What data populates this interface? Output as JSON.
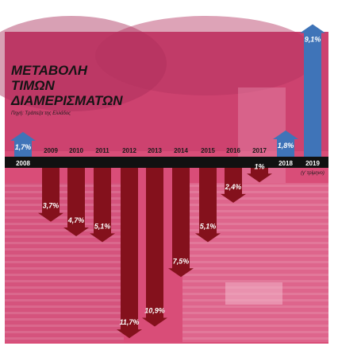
{
  "chart_data": {
    "type": "bar",
    "title_lines": [
      "ΜΕΤΑΒΟΛΗ",
      "ΤΙΜΩΝ",
      "ΔΙΑΜΕΡΙΣΜΑΤΩΝ"
    ],
    "source": "Πηγή: Τράπεζα της Ελλάδος",
    "categories": [
      "2008",
      "2009",
      "2010",
      "2011",
      "2012",
      "2013",
      "2014",
      "2015",
      "2016",
      "2017",
      "2018",
      "2019"
    ],
    "category_note_2019": "(γ' τρίμηνο)",
    "values": [
      1.7,
      -3.7,
      -4.7,
      -5.1,
      -11.7,
      -10.9,
      -7.5,
      -5.1,
      -2.4,
      -1.0,
      1.8,
      9.1
    ],
    "value_labels": [
      "1,7%",
      "3,7%",
      "4,7%",
      "5,1%",
      "11,7%",
      "10,9%",
      "7,5%",
      "5,1%",
      "2,4%",
      "1%",
      "1,8%",
      "9,1%"
    ],
    "colors": {
      "positive": "#3f74b8",
      "negative": "#84111c",
      "band": "#111111",
      "background": "#d94d78"
    }
  }
}
